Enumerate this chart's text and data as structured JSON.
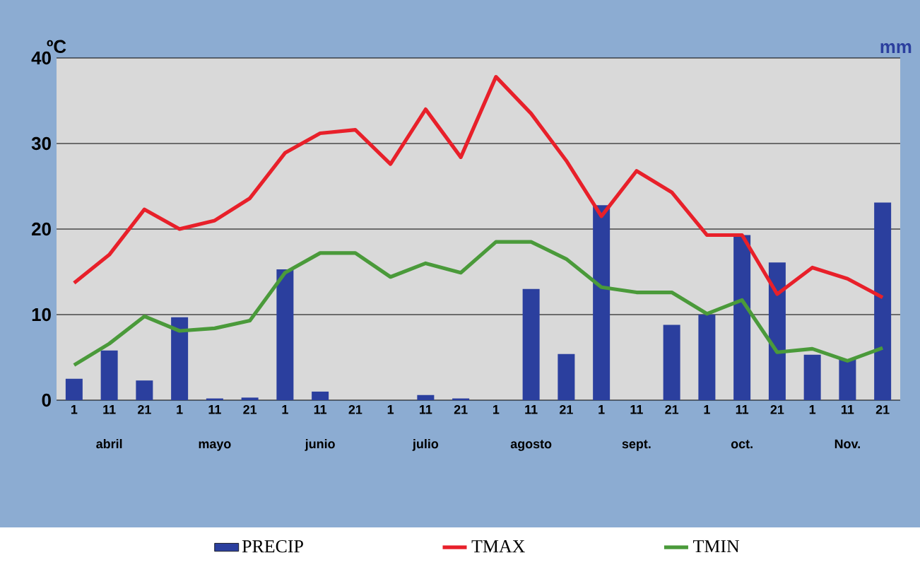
{
  "chart_data": {
    "type": "bar",
    "ylabel": "ºC",
    "y2label": "mm",
    "categories": [
      "1",
      "11",
      "21",
      "1",
      "11",
      "21",
      "1",
      "11",
      "21",
      "1",
      "11",
      "21",
      "1",
      "11",
      "21",
      "1",
      "11",
      "21",
      "1",
      "11",
      "21",
      "1",
      "11",
      "21"
    ],
    "annotations": [
      "abril",
      "mayo",
      "junio",
      "julio",
      "agosto",
      "sept.",
      "oct.",
      "Nov."
    ],
    "series": [
      {
        "name": "PRECIP",
        "color": "#2b3f9e",
        "values": [
          2.5,
          5.8,
          2.3,
          9.7,
          0.2,
          0.3,
          15.3,
          1.0,
          0,
          0,
          0.6,
          0.2,
          0,
          13,
          5.4,
          22.8,
          0,
          8.8,
          10,
          19.3,
          16.1,
          5.3,
          4.8,
          23.1
        ]
      },
      {
        "name": "TMAX",
        "type": "line",
        "color": "#e8202a",
        "values": [
          13.7,
          17,
          22.3,
          20,
          21,
          23.6,
          28.9,
          31.2,
          31.6,
          27.6,
          34,
          28.4,
          37.8,
          33.5,
          28,
          21.5,
          26.8,
          24.3,
          19.3,
          19.3,
          12.4,
          15.5,
          14.2,
          12
        ]
      },
      {
        "name": "TMIN",
        "type": "line",
        "color": "#4a9a3a",
        "values": [
          4.1,
          6.6,
          9.8,
          8.1,
          8.4,
          9.3,
          14.9,
          17.2,
          17.2,
          14.4,
          16,
          14.9,
          18.5,
          18.5,
          16.5,
          13.2,
          12.6,
          12.6,
          10.1,
          11.7,
          5.6,
          6,
          4.6,
          6.1
        ]
      }
    ],
    "ylim": [
      0,
      40
    ],
    "yticks": [
      0,
      10,
      20,
      30,
      40
    ],
    "grid": "y",
    "legend": "bottom",
    "line_style": "solid"
  }
}
